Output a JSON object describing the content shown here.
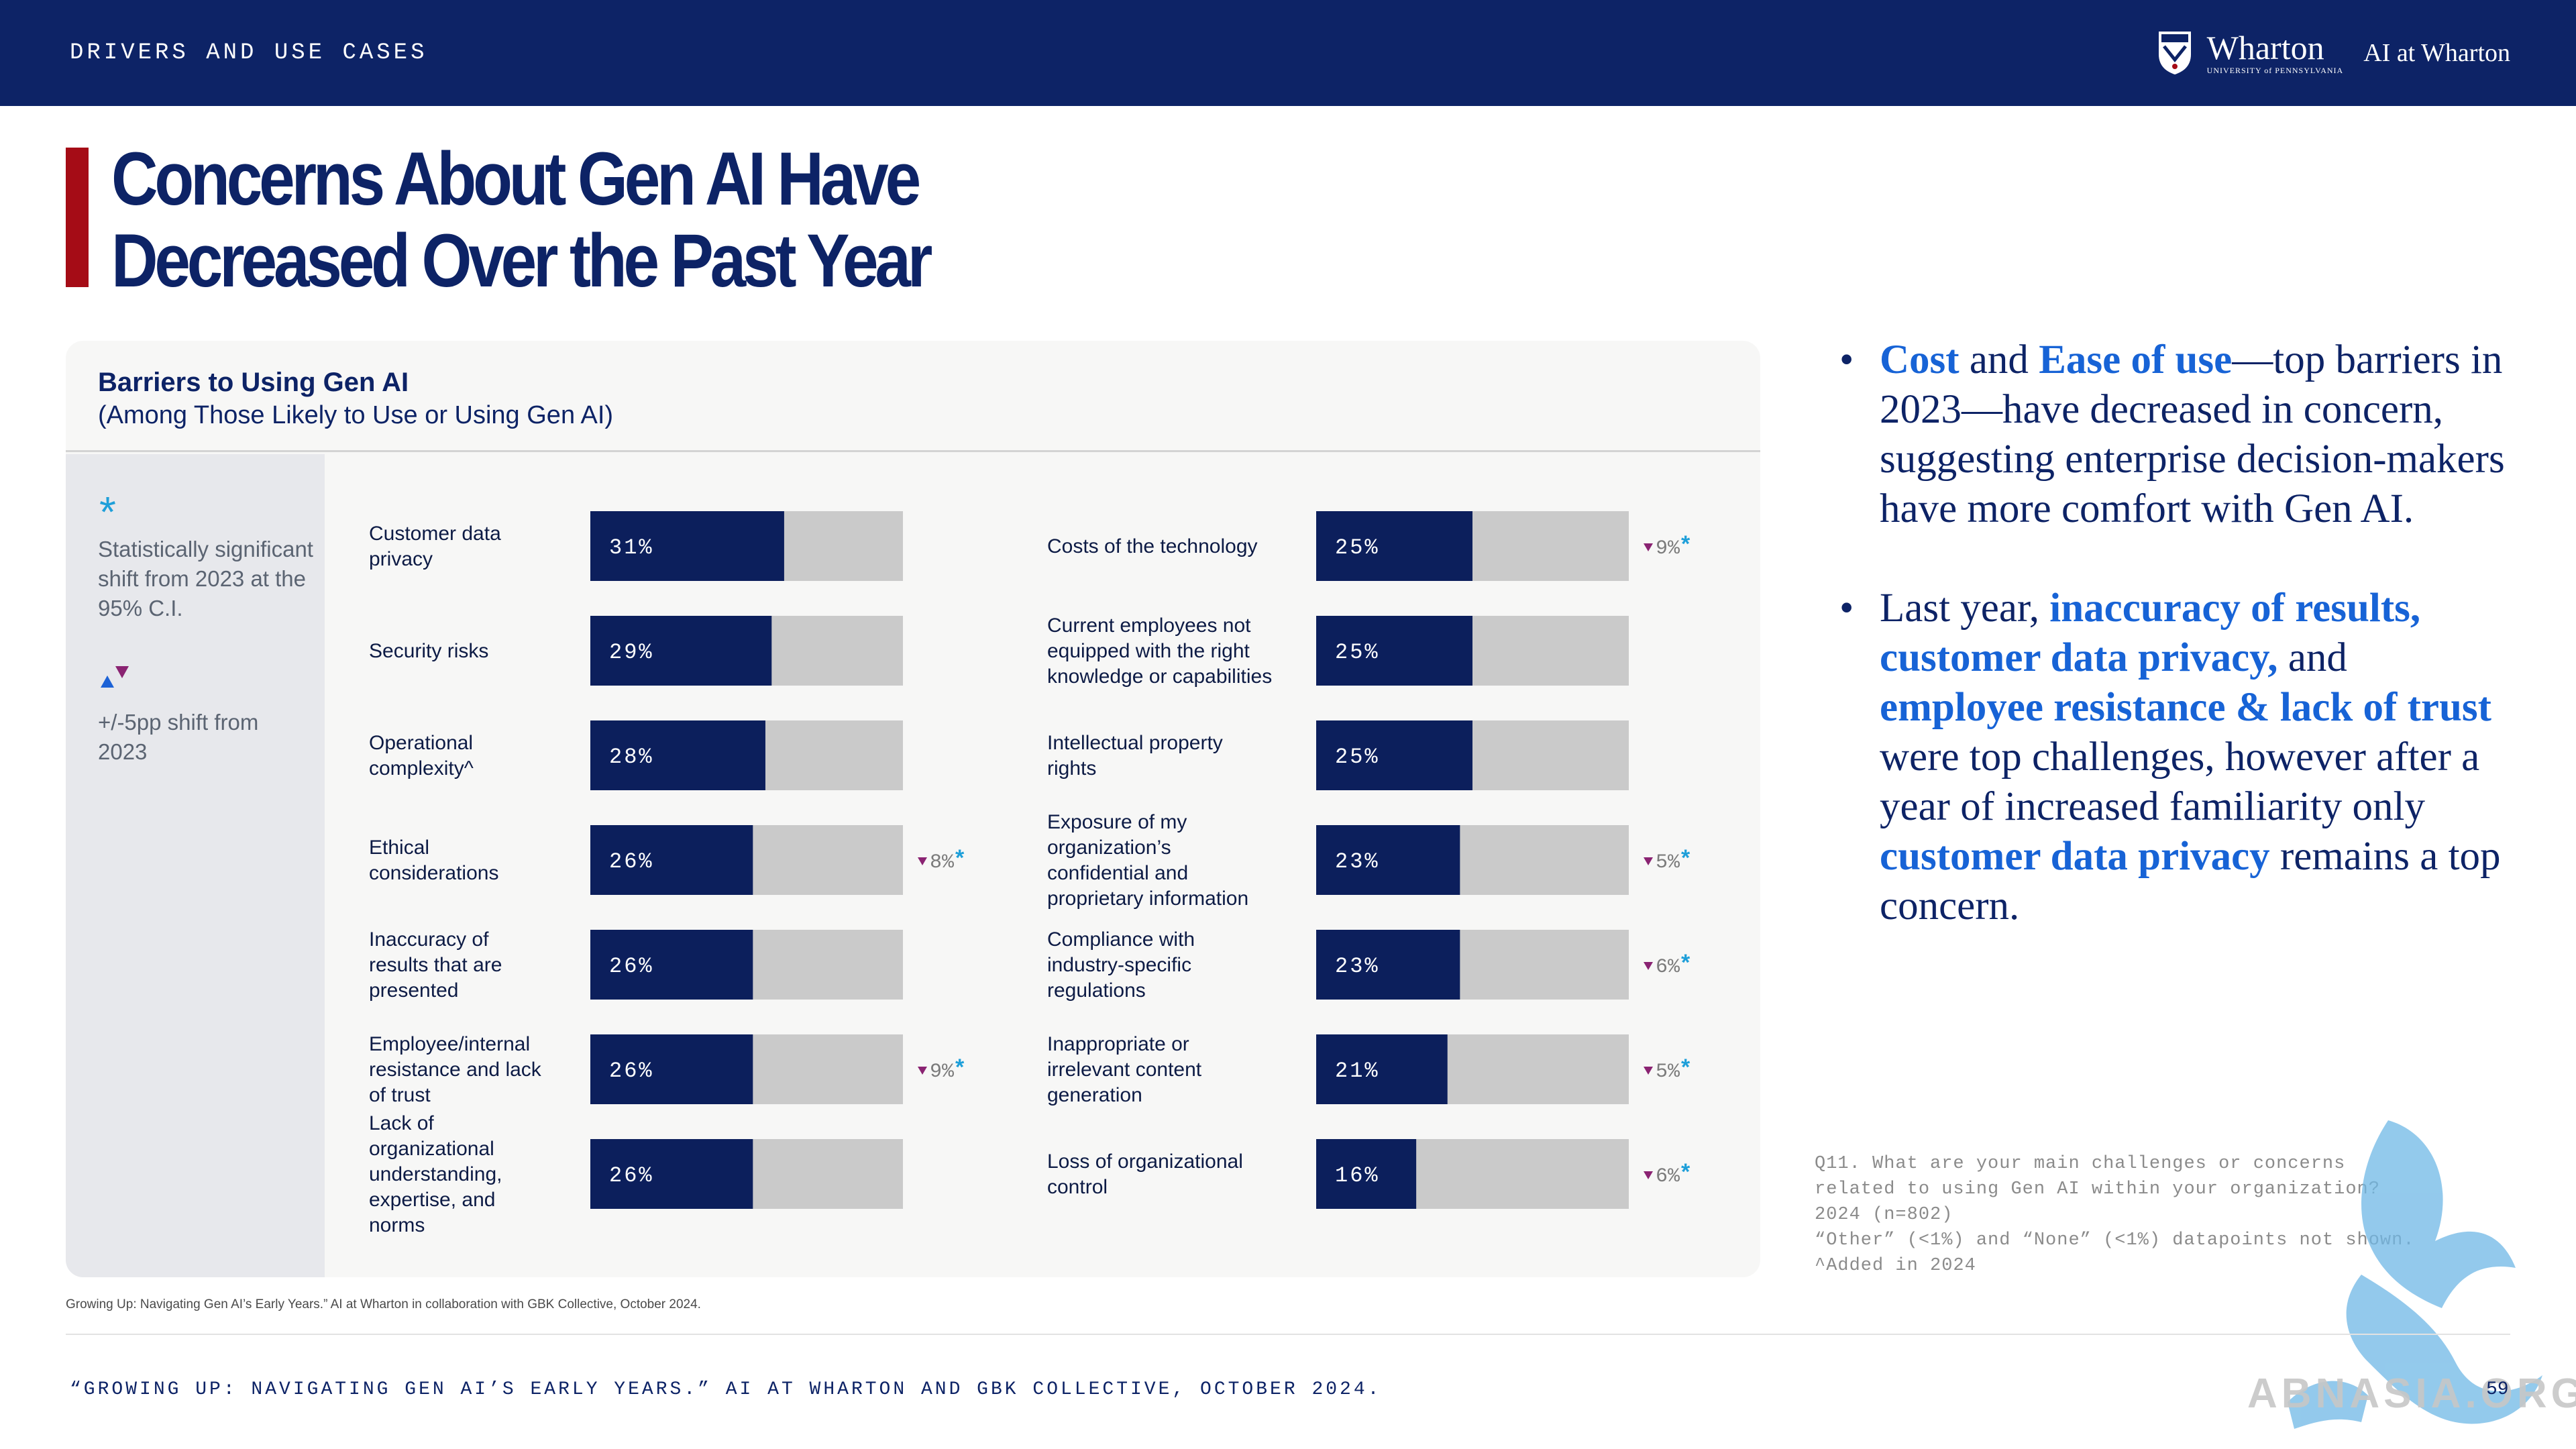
{
  "header": {
    "section_label": "DRIVERS AND USE CASES",
    "logo_word": "Wharton",
    "logo_university": "UNIVERSITY of PENNSYLVANIA",
    "logo_ai": "AI at Wharton"
  },
  "title": {
    "line1": "Concerns About Gen AI Have",
    "line2": "Decreased Over the Past Year"
  },
  "legend": {
    "star_symbol": "*",
    "significance_text": "Statistically significant shift from 2023 at the 95% C.I.",
    "shift_text": "+/-5pp shift from 2023"
  },
  "chart_data": {
    "type": "bar",
    "orientation": "horizontal",
    "title": "Barriers to Using Gen AI",
    "subtitle": "(Among Those Likely to Use or Using Gen AI)",
    "value_unit": "%",
    "xlim": [
      0,
      50
    ],
    "colors": {
      "bar": "#0c1f5c",
      "track": "#cacaca",
      "down_arrow": "#8a2372",
      "up_arrow": "#1d62d6",
      "star": "#1e9fd9",
      "change_text": "#7b7b7b"
    },
    "panels": [
      {
        "items": [
          {
            "label": "Customer data privacy",
            "value": 31,
            "value_label": "31%"
          },
          {
            "label": "Security risks",
            "value": 29,
            "value_label": "29%"
          },
          {
            "label": "Operational complexity^",
            "value": 28,
            "value_label": "28%"
          },
          {
            "label": "Ethical considerations",
            "value": 26,
            "value_label": "26%",
            "change": {
              "direction": "down",
              "text": "8%",
              "significant": true
            }
          },
          {
            "label": "Inaccuracy of results that are presented",
            "value": 26,
            "value_label": "26%"
          },
          {
            "label": "Employee/internal resistance and lack of trust",
            "value": 26,
            "value_label": "26%",
            "change": {
              "direction": "down",
              "text": "9%",
              "significant": true
            }
          },
          {
            "label": "Lack of organizational understanding, expertise, and norms",
            "value": 26,
            "value_label": "26%"
          }
        ]
      },
      {
        "items": [
          {
            "label": "Costs of the technology",
            "value": 25,
            "value_label": "25%",
            "change": {
              "direction": "down",
              "text": "9%",
              "significant": true
            }
          },
          {
            "label": "Current employees not equipped with the right knowledge or capabilities",
            "value": 25,
            "value_label": "25%"
          },
          {
            "label": "Intellectual property rights",
            "value": 25,
            "value_label": "25%"
          },
          {
            "label": "Exposure of my organization’s confidential and proprietary information",
            "value": 23,
            "value_label": "23%",
            "change": {
              "direction": "down",
              "text": "5%",
              "significant": true
            }
          },
          {
            "label": "Compliance with industry-specific regulations",
            "value": 23,
            "value_label": "23%",
            "change": {
              "direction": "down",
              "text": "6%",
              "significant": true
            }
          },
          {
            "label": "Inappropriate or irrelevant content generation",
            "value": 21,
            "value_label": "21%",
            "change": {
              "direction": "down",
              "text": "5%",
              "significant": true
            }
          },
          {
            "label": "Loss of organizational control",
            "value": 16,
            "value_label": "16%",
            "change": {
              "direction": "down",
              "text": "6%",
              "significant": true
            }
          }
        ]
      }
    ]
  },
  "commentary": {
    "b1": {
      "t1": "Cost",
      "t2": " and ",
      "t3": "Ease of use",
      "t4": "—top barriers in 2023—have decreased in concern, suggesting enterprise decision-makers have more comfort with Gen AI."
    },
    "b2": {
      "t1": "Last year, ",
      "t2": "inaccuracy of results, customer data privacy,",
      "t3": " and ",
      "t4": "employee resistance & lack of trust",
      "t5": " were top challenges, however after a year of increased familiarity only ",
      "t6": "customer data privacy",
      "t7": " remains a top concern."
    }
  },
  "notes": {
    "line1": "Q11. What are your main challenges or concerns",
    "line2": "related to using Gen AI within your organization?",
    "line3": "2024 (n=802)",
    "line4": "“Other” (<1%) and “None” (<1%) datapoints not shown.",
    "line5": "^Added in 2024"
  },
  "citation": "Growing Up: Navigating Gen AI’s Early Years.” AI at Wharton in collaboration with GBK Collective, October 2024.",
  "footer": {
    "text": "“GROWING UP: NAVIGATING GEN AI’S EARLY YEARS.” AI AT WHARTON AND GBK COLLECTIVE, OCTOBER 2024.",
    "page_number": "59"
  },
  "watermark": {
    "text": "ABNASIA.ORG"
  }
}
